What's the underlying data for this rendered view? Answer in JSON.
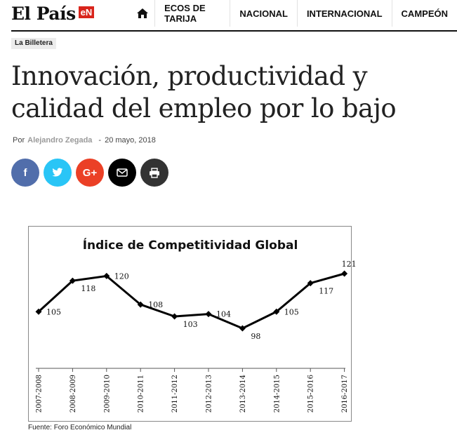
{
  "header": {
    "logo_text": "El País",
    "logo_badge": "eN",
    "home_icon": "home-icon",
    "nav": [
      "ECOS DE TARIJA",
      "NACIONAL",
      "INTERNACIONAL",
      "CAMPEÓN"
    ]
  },
  "article": {
    "category": "La Billetera",
    "title": "Innovación, productividad y calidad del empleo por lo bajo",
    "by_label": "Por",
    "author": "Alejandro Zegada",
    "separator": "-",
    "date": "20 mayo, 2018"
  },
  "share": {
    "facebook": "f",
    "google": "G+",
    "icons": [
      "facebook-icon",
      "twitter-icon",
      "google-plus-icon",
      "email-icon",
      "print-icon"
    ]
  },
  "chart_data": {
    "type": "line",
    "title": "Índice de Competitividad Global",
    "categories": [
      "2007-2008",
      "2008-2009",
      "2009-2010",
      "2010-2011",
      "2011-2012",
      "2012-2013",
      "2013-2014",
      "2014-2015",
      "2015-2016",
      "2016-2017"
    ],
    "values": [
      105,
      118,
      120,
      108,
      103,
      104,
      98,
      105,
      117,
      121
    ],
    "ylim": [
      80,
      125
    ],
    "grid": false,
    "legend": "none",
    "line_color": "#000000"
  },
  "source": "Fuente: Foro Económico Mundial"
}
